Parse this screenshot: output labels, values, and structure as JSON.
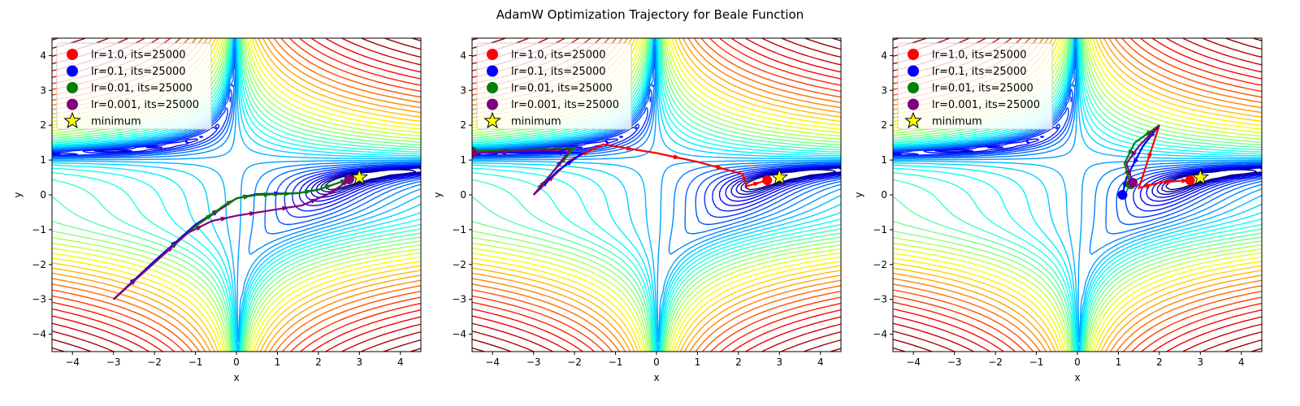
{
  "figure_title": "AdamW Optimization Trajectory for Beale Function",
  "chart_data": [
    {
      "type": "contour",
      "function": "beale",
      "xlabel": "x",
      "ylabel": "y",
      "xlim": [
        -4.5,
        4.5
      ],
      "ylim": [
        -4.5,
        4.5
      ],
      "xticks": [
        -4,
        -3,
        -2,
        -1,
        0,
        1,
        2,
        3,
        4
      ],
      "yticks": [
        -4,
        -3,
        -2,
        -1,
        0,
        1,
        2,
        3,
        4
      ],
      "minimum": {
        "x": 3,
        "y": 0.5
      },
      "legend": {
        "loc": "upper left",
        "entries": [
          {
            "label": "lr=1.0, its=25000",
            "color": "#ff0000",
            "marker": "circle"
          },
          {
            "label": "lr=0.1, its=25000",
            "color": "#0000ff",
            "marker": "circle"
          },
          {
            "label": "lr=0.01, its=25000",
            "color": "#008000",
            "marker": "circle"
          },
          {
            "label": "lr=0.001, its=25000",
            "color": "#800080",
            "marker": "circle"
          },
          {
            "label": "minimum",
            "color": "#ffff00",
            "marker": "star"
          }
        ]
      },
      "series": [
        {
          "color": "#ff0000",
          "end": [
            2.75,
            0.45
          ],
          "points": [
            [
              -3,
              -3
            ],
            [
              -2,
              -1.9
            ],
            [
              -1,
              -0.9
            ],
            [
              0,
              -0.1
            ],
            [
              0.5,
              0.02
            ],
            [
              1.5,
              0.05
            ],
            [
              2.0,
              0.15
            ],
            [
              2.5,
              0.35
            ],
            [
              2.75,
              0.45
            ]
          ]
        },
        {
          "color": "#0000ff",
          "end": [
            2.75,
            0.45
          ],
          "points": [
            [
              -3,
              -3
            ],
            [
              -2,
              -1.9
            ],
            [
              -1,
              -0.85
            ],
            [
              0,
              -0.1
            ],
            [
              0.5,
              0.02
            ],
            [
              1.5,
              0.05
            ],
            [
              2.0,
              0.15
            ],
            [
              2.5,
              0.35
            ],
            [
              2.75,
              0.45
            ]
          ]
        },
        {
          "color": "#008000",
          "end": [
            2.75,
            0.45
          ],
          "points": [
            [
              -3,
              -3
            ],
            [
              -2,
              -1.95
            ],
            [
              -1,
              -0.9
            ],
            [
              -0.3,
              -0.3
            ],
            [
              0,
              -0.1
            ],
            [
              0.5,
              0.0
            ],
            [
              1.0,
              0.02
            ],
            [
              1.5,
              0.05
            ],
            [
              2.0,
              0.15
            ],
            [
              2.5,
              0.35
            ],
            [
              2.75,
              0.45
            ]
          ]
        },
        {
          "color": "#800080",
          "end": [
            2.75,
            0.45
          ],
          "points": [
            [
              -3,
              -3
            ],
            [
              -2,
              -1.95
            ],
            [
              -1.2,
              -1.1
            ],
            [
              -0.6,
              -0.75
            ],
            [
              0,
              -0.6
            ],
            [
              0.8,
              -0.45
            ],
            [
              1.6,
              -0.3
            ],
            [
              2.2,
              0.0
            ],
            [
              2.6,
              0.3
            ],
            [
              2.75,
              0.45
            ]
          ]
        }
      ]
    },
    {
      "type": "contour",
      "function": "beale",
      "xlabel": "x",
      "ylabel": "y",
      "xlim": [
        -4.5,
        4.5
      ],
      "ylim": [
        -4.5,
        4.5
      ],
      "xticks": [
        -4,
        -3,
        -2,
        -1,
        0,
        1,
        2,
        3,
        4
      ],
      "yticks": [
        -4,
        -3,
        -2,
        -1,
        0,
        1,
        2,
        3,
        4
      ],
      "minimum": {
        "x": 3,
        "y": 0.5
      },
      "legend": {
        "loc": "upper left",
        "entries": [
          {
            "label": "lr=1.0, its=25000",
            "color": "#ff0000",
            "marker": "circle"
          },
          {
            "label": "lr=0.1, its=25000",
            "color": "#0000ff",
            "marker": "circle"
          },
          {
            "label": "lr=0.01, its=25000",
            "color": "#008000",
            "marker": "circle"
          },
          {
            "label": "lr=0.001, its=25000",
            "color": "#800080",
            "marker": "circle"
          },
          {
            "label": "minimum",
            "color": "#ffff00",
            "marker": "star"
          }
        ]
      },
      "series": [
        {
          "color": "#ff0000",
          "end": [
            2.7,
            0.42
          ],
          "points": [
            [
              -3,
              0
            ],
            [
              -2.1,
              1.0
            ],
            [
              -1.3,
              1.45
            ],
            [
              0,
              1.2
            ],
            [
              1.0,
              0.95
            ],
            [
              2.1,
              0.6
            ],
            [
              2.2,
              0.25
            ],
            [
              2.7,
              0.42
            ]
          ]
        },
        {
          "color": "#0000ff",
          "end": [
            -4.5,
            1.2
          ],
          "points": [
            [
              -3,
              0
            ],
            [
              -2.4,
              0.7
            ],
            [
              -1.8,
              1.2
            ],
            [
              -3.0,
              1.22
            ],
            [
              -4.5,
              1.2
            ]
          ]
        },
        {
          "color": "#008000",
          "end": [
            -4.5,
            1.25
          ],
          "points": [
            [
              -3,
              0
            ],
            [
              -2.5,
              0.7
            ],
            [
              -2.0,
              1.35
            ],
            [
              -3.0,
              1.3
            ],
            [
              -4.5,
              1.25
            ]
          ]
        },
        {
          "color": "#800080",
          "end": [
            -4.5,
            1.2
          ],
          "points": [
            [
              -3,
              0
            ],
            [
              -2.6,
              0.55
            ],
            [
              -2.1,
              1.3
            ],
            [
              -3.0,
              1.28
            ],
            [
              -4.5,
              1.2
            ]
          ]
        }
      ]
    },
    {
      "type": "contour",
      "function": "beale",
      "xlabel": "x",
      "ylabel": "y",
      "xlim": [
        -4.5,
        4.5
      ],
      "ylim": [
        -4.5,
        4.5
      ],
      "xticks": [
        -4,
        -3,
        -2,
        -1,
        0,
        1,
        2,
        3,
        4
      ],
      "yticks": [
        -4,
        -3,
        -2,
        -1,
        0,
        1,
        2,
        3,
        4
      ],
      "minimum": {
        "x": 3,
        "y": 0.5
      },
      "legend": {
        "loc": "upper left",
        "entries": [
          {
            "label": "lr=1.0, its=25000",
            "color": "#ff0000",
            "marker": "circle"
          },
          {
            "label": "lr=0.1, its=25000",
            "color": "#0000ff",
            "marker": "circle"
          },
          {
            "label": "lr=0.01, its=25000",
            "color": "#008000",
            "marker": "circle"
          },
          {
            "label": "lr=0.001, its=25000",
            "color": "#800080",
            "marker": "circle"
          },
          {
            "label": "minimum",
            "color": "#ffff00",
            "marker": "star"
          }
        ]
      },
      "series": [
        {
          "color": "#ff0000",
          "end": [
            2.75,
            0.42
          ],
          "points": [
            [
              2,
              2
            ],
            [
              1.5,
              0.2
            ],
            [
              2.0,
              0.35
            ],
            [
              2.5,
              0.4
            ],
            [
              2.75,
              0.42
            ]
          ]
        },
        {
          "color": "#0000ff",
          "end": [
            1.1,
            0.0
          ],
          "points": [
            [
              2,
              2
            ],
            [
              1.6,
              1.4
            ],
            [
              1.2,
              0.5
            ],
            [
              1.1,
              0.0
            ]
          ]
        },
        {
          "color": "#008000",
          "end": [
            1.3,
            0.3
          ],
          "points": [
            [
              2,
              2
            ],
            [
              1.4,
              1.5
            ],
            [
              1.15,
              0.9
            ],
            [
              1.3,
              0.3
            ]
          ]
        },
        {
          "color": "#800080",
          "end": [
            1.35,
            0.35
          ],
          "points": [
            [
              2,
              2
            ],
            [
              1.5,
              1.4
            ],
            [
              1.2,
              0.9
            ],
            [
              1.35,
              0.35
            ]
          ]
        }
      ]
    }
  ]
}
